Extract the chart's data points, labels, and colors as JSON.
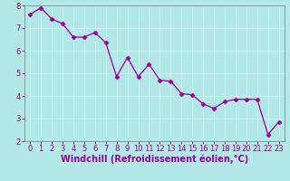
{
  "x": [
    0,
    1,
    2,
    3,
    4,
    5,
    6,
    7,
    8,
    9,
    10,
    11,
    12,
    13,
    14,
    15,
    16,
    17,
    18,
    19,
    20,
    21,
    22,
    23
  ],
  "y": [
    7.6,
    7.9,
    7.4,
    7.2,
    6.6,
    6.6,
    6.8,
    6.35,
    4.85,
    5.7,
    4.85,
    5.4,
    4.7,
    4.65,
    4.1,
    4.05,
    3.65,
    3.45,
    3.75,
    3.85,
    3.85,
    3.85,
    2.3,
    2.85
  ],
  "line_color": "#990099",
  "marker": "D",
  "marker_size": 2.5,
  "bg_color": "#b3e8e8",
  "grid_color": "#d4f0f0",
  "xlabel": "Windchill (Refroidissement éolien,°C)",
  "xlim": [
    -0.5,
    23.5
  ],
  "ylim": [
    2,
    8
  ],
  "yticks": [
    2,
    3,
    4,
    5,
    6,
    7,
    8
  ],
  "xticks": [
    0,
    1,
    2,
    3,
    4,
    5,
    6,
    7,
    8,
    9,
    10,
    11,
    12,
    13,
    14,
    15,
    16,
    17,
    18,
    19,
    20,
    21,
    22,
    23
  ],
  "axis_color": "#888888",
  "tick_color": "#990099",
  "xlabel_color": "#990099",
  "xlabel_fontsize": 7.0,
  "tick_fontsize": 6.0,
  "line_width": 0.9
}
